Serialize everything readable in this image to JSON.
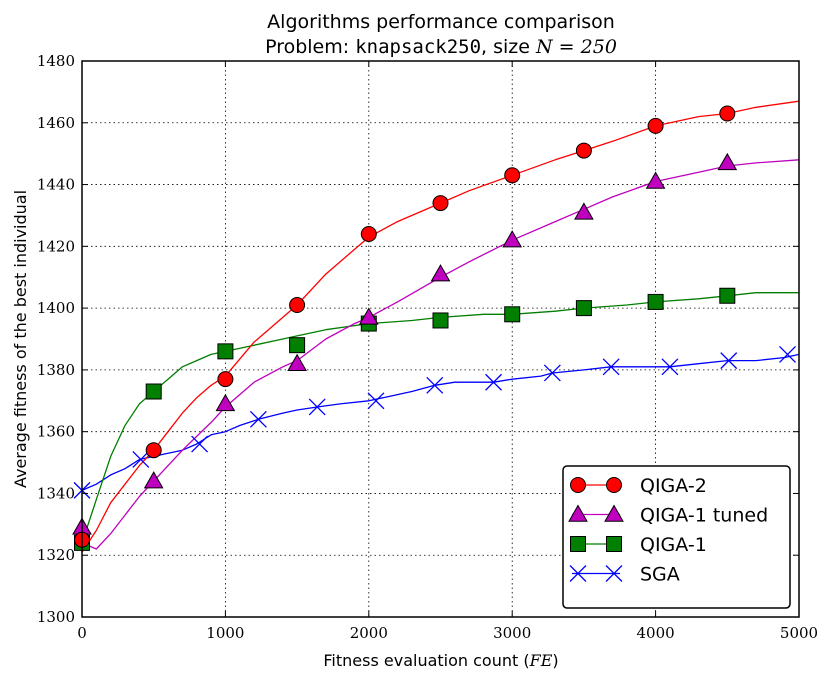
{
  "chart_data": {
    "type": "line",
    "title": "Algorithms performance comparison",
    "subtitle_prefix": "Problem: ",
    "subtitle_problem": "knapsack250",
    "subtitle_mid": ", size ",
    "subtitle_math": "N = 250",
    "xlabel_text": "Fitness evaluation count (",
    "xlabel_math": "FE",
    "xlabel_close": ")",
    "ylabel": "Average fitness of the best individual",
    "xlim": [
      0,
      5000
    ],
    "ylim": [
      1300,
      1480
    ],
    "xticks": [
      0,
      1000,
      2000,
      3000,
      4000,
      5000
    ],
    "xtick_labels": [
      "0",
      "1000",
      "2000",
      "3000",
      "4000",
      "5000"
    ],
    "yticks": [
      1300,
      1320,
      1340,
      1360,
      1380,
      1400,
      1420,
      1440,
      1460,
      1480
    ],
    "ytick_labels": [
      "1300",
      "1320",
      "1340",
      "1360",
      "1380",
      "1400",
      "1420",
      "1440",
      "1460",
      "1480"
    ],
    "grid": true,
    "legend_position": "lower-right",
    "series": [
      {
        "name": "QIGA-2",
        "color": "#ff0000",
        "marker": "circle",
        "x": [
          0,
          100,
          200,
          300,
          400,
          500,
          600,
          700,
          800,
          900,
          1000,
          1200,
          1400,
          1500,
          1700,
          1900,
          2000,
          2200,
          2500,
          2700,
          3000,
          3300,
          3500,
          3700,
          4000,
          4300,
          4500,
          4700,
          5000
        ],
        "y": [
          1321,
          1328,
          1337,
          1343,
          1349,
          1354,
          1360,
          1366,
          1371,
          1375,
          1378,
          1389,
          1397,
          1401,
          1411,
          1419,
          1423,
          1428,
          1434,
          1438,
          1443,
          1448,
          1451,
          1454,
          1459,
          1462,
          1463,
          1465,
          1467
        ],
        "marker_x": [
          0,
          500,
          1000,
          1500,
          2000,
          2500,
          3000,
          3500,
          4000,
          4500
        ],
        "marker_y": [
          1325,
          1354,
          1377,
          1401,
          1424,
          1434,
          1443,
          1451,
          1459,
          1463
        ]
      },
      {
        "name": "QIGA-1 tuned",
        "color": "#bf00bf",
        "marker": "triangle",
        "x": [
          0,
          100,
          200,
          300,
          400,
          500,
          700,
          900,
          1000,
          1200,
          1400,
          1500,
          1700,
          1900,
          2000,
          2200,
          2500,
          2700,
          3000,
          3300,
          3500,
          3700,
          4000,
          4300,
          4500,
          4700,
          5000
        ],
        "y": [
          1324,
          1322,
          1327,
          1333,
          1339,
          1344,
          1354,
          1363,
          1368,
          1376,
          1381,
          1383,
          1390,
          1395,
          1397,
          1402,
          1410,
          1415,
          1422,
          1428,
          1432,
          1436,
          1441,
          1444,
          1446,
          1447,
          1448
        ],
        "marker_x": [
          0,
          500,
          1000,
          1500,
          2000,
          2500,
          3000,
          3500,
          4000,
          4500
        ],
        "marker_y": [
          1329,
          1344,
          1369,
          1382,
          1397,
          1411,
          1422,
          1431,
          1441,
          1447
        ]
      },
      {
        "name": "QIGA-1",
        "color": "#007f00",
        "marker": "square",
        "x": [
          0,
          100,
          200,
          300,
          400,
          500,
          600,
          700,
          800,
          900,
          1000,
          1200,
          1400,
          1500,
          1700,
          2000,
          2300,
          2500,
          2800,
          3000,
          3300,
          3500,
          3800,
          4000,
          4300,
          4500,
          4700,
          5000
        ],
        "y": [
          1324,
          1338,
          1352,
          1362,
          1369,
          1373,
          1377,
          1381,
          1383,
          1385,
          1386,
          1388,
          1390,
          1391,
          1393,
          1395,
          1396,
          1397,
          1398,
          1398,
          1399,
          1400,
          1401,
          1402,
          1403,
          1404,
          1405,
          1405
        ],
        "marker_x": [
          0,
          500,
          1000,
          1500,
          2000,
          2500,
          3000,
          3500,
          4000,
          4500
        ],
        "marker_y": [
          1324,
          1373,
          1386,
          1388,
          1395,
          1396,
          1398,
          1400,
          1402,
          1404
        ]
      },
      {
        "name": "SGA",
        "color": "#0000ff",
        "marker": "x",
        "x": [
          0,
          100,
          200,
          300,
          400,
          500,
          600,
          700,
          800,
          900,
          1000,
          1100,
          1230,
          1400,
          1500,
          1640,
          1800,
          2000,
          2100,
          2300,
          2460,
          2600,
          2870,
          3000,
          3200,
          3280,
          3500,
          3690,
          3900,
          4100,
          4300,
          4500,
          4700,
          4900,
          5000
        ],
        "y": [
          1341,
          1343,
          1346,
          1348,
          1351,
          1352,
          1353,
          1354,
          1356,
          1359,
          1360,
          1362,
          1364,
          1366,
          1367,
          1368,
          1369,
          1370,
          1371,
          1373,
          1375,
          1376,
          1376,
          1377,
          1378,
          1379,
          1380,
          1381,
          1381,
          1381,
          1382,
          1383,
          1383,
          1384,
          1385
        ],
        "marker_x": [
          0,
          410,
          820,
          1230,
          1640,
          2050,
          2460,
          2870,
          3280,
          3690,
          4100,
          4510,
          4920
        ],
        "marker_y": [
          1341,
          1351,
          1356,
          1364,
          1368,
          1370,
          1375,
          1376,
          1379,
          1381,
          1381,
          1383,
          1385
        ]
      }
    ]
  }
}
